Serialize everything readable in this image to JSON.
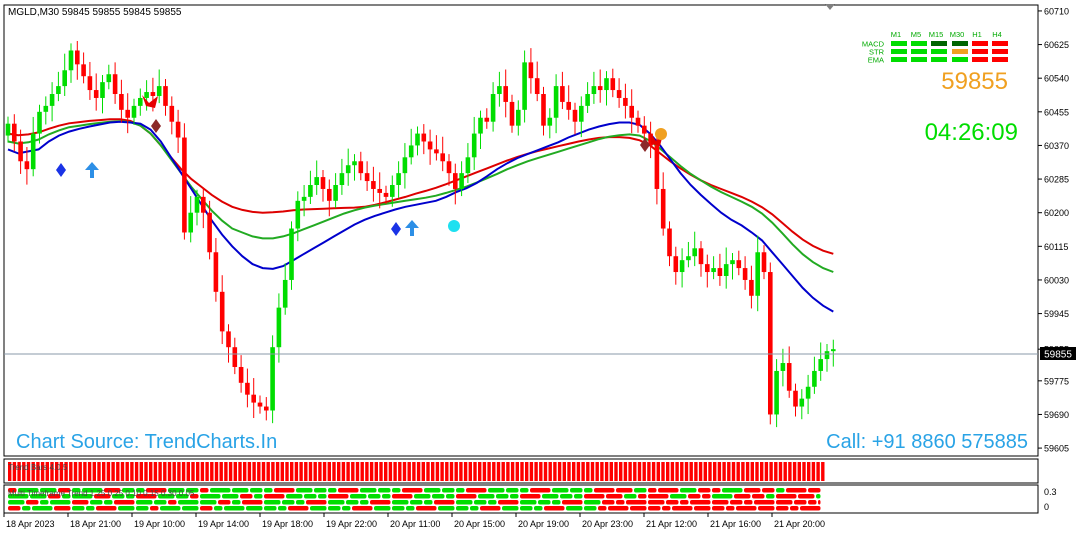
{
  "header": {
    "symbol_line": "MGLD,M30  59845 59855 59845 59855"
  },
  "watermarks": {
    "source": "Chart Source: TrendCharts.In",
    "contact": "Call: +91 8860 575885"
  },
  "dashboard": {
    "timeframes": [
      "M1",
      "M5",
      "M15",
      "M30",
      "H1",
      "H4"
    ],
    "rows": [
      {
        "label": "MACD",
        "states": [
          "up",
          "up",
          "strong-up",
          "strong-up",
          "down",
          "down"
        ]
      },
      {
        "label": "STR",
        "states": [
          "up",
          "up",
          "up",
          "neutral",
          "down",
          "down"
        ]
      },
      {
        "label": "EMA",
        "states": [
          "up",
          "up",
          "up",
          "up",
          "down",
          "down"
        ]
      }
    ],
    "price": "59855",
    "timer": "04:26:09"
  },
  "indicators": {
    "panel1_label": "Trend Bars 4.0.5",
    "panel2_label": "Multi Timeframe Trend 1.25 0.25 0.10 0.15 0.30 0.05",
    "panel2_scale": [
      "0.3",
      "0"
    ]
  },
  "colors": {
    "bull": "#00dd00",
    "bear": "#ff0000",
    "ema_fast": "#0000cc",
    "ema_mid": "#22aa22",
    "ema_slow": "#dd0000",
    "watermark": "#29a3e6",
    "price_orange": "#f0a020",
    "timer_green": "#00dd00",
    "current_price_line": "#8a9aa8"
  },
  "chart_data": {
    "type": "candlestick",
    "title": "MGLD,M30",
    "y_axis": {
      "ticks": [
        "60710",
        "60625",
        "60540",
        "60455",
        "60370",
        "60285",
        "60200",
        "60115",
        "60030",
        "59945",
        "59855",
        "59775",
        "59690",
        "59605"
      ],
      "current_price_label": "59855",
      "ylim": [
        59585,
        60725
      ]
    },
    "x_axis": {
      "ticks": [
        "18 Apr 2023",
        "18 Apr 21:00",
        "19 Apr 10:00",
        "19 Apr 14:00",
        "19 Apr 18:00",
        "19 Apr 22:00",
        "20 Apr 11:00",
        "20 Apr 15:00",
        "20 Apr 19:00",
        "20 Apr 23:00",
        "21 Apr 12:00",
        "21 Apr 16:00",
        "21 Apr 20:00"
      ]
    },
    "closes": [
      60425,
      60380,
      60330,
      60310,
      60400,
      60455,
      60470,
      60500,
      60520,
      60560,
      60610,
      60575,
      60545,
      60510,
      60490,
      60530,
      60550,
      60500,
      60460,
      60440,
      60470,
      60490,
      60505,
      60495,
      60520,
      60470,
      60430,
      60390,
      60150,
      60200,
      60240,
      60200,
      60100,
      60000,
      59900,
      59860,
      59810,
      59770,
      59740,
      59720,
      59710,
      59700,
      59860,
      59960,
      60030,
      60160,
      60230,
      60240,
      60270,
      60290,
      60260,
      60230,
      60270,
      60300,
      60320,
      60330,
      60300,
      60280,
      60260,
      60250,
      60240,
      60270,
      60300,
      60340,
      60370,
      60400,
      60380,
      60360,
      60350,
      60330,
      60300,
      60260,
      60300,
      60340,
      60400,
      60440,
      60430,
      60500,
      60520,
      60480,
      60420,
      60460,
      60580,
      60540,
      60500,
      60420,
      60440,
      60520,
      60480,
      60460,
      60430,
      60470,
      60500,
      60520,
      60510,
      60540,
      60510,
      60490,
      60470,
      60440,
      60420,
      60400,
      60370,
      60260,
      60160,
      60090,
      60050,
      60080,
      60090,
      60110,
      60070,
      60050,
      60060,
      60040,
      60070,
      60080,
      60060,
      60030,
      59990,
      60100,
      60050,
      59690,
      59800,
      59820,
      59750,
      59710,
      59730,
      59760,
      59800,
      59830,
      59850,
      59855
    ],
    "ema_fast": [
      60360,
      60350,
      60355,
      60360,
      60380,
      60395,
      60405,
      60412,
      60418,
      60423,
      60428,
      60430,
      60428,
      60425,
      60410,
      60380,
      60340,
      60300,
      60260,
      60220,
      60180,
      60145,
      60115,
      60090,
      60070,
      60060,
      60058,
      60065,
      60080,
      60095,
      60110,
      60125,
      60140,
      60155,
      60170,
      60182,
      60192,
      60200,
      60208,
      60215,
      60220,
      60225,
      60230,
      60240,
      60252,
      60262,
      60275,
      60292,
      60310,
      60325,
      60338,
      60348,
      60358,
      60368,
      60378,
      60390,
      60400,
      60410,
      60418,
      60424,
      60428,
      60428,
      60422,
      60400,
      60370,
      60335,
      60300,
      60270,
      60245,
      60222,
      60200,
      60182,
      60168,
      60150,
      60130,
      60100,
      60070,
      60040,
      60010,
      59985,
      59965,
      59950
    ],
    "ema_mid": [
      60380,
      60375,
      60378,
      60385,
      60398,
      60408,
      60416,
      60420,
      60424,
      60427,
      60430,
      60431,
      60429,
      60420,
      60400,
      60370,
      60335,
      60300,
      60265,
      60235,
      60205,
      60180,
      60160,
      60150,
      60140,
      60135,
      60135,
      60140,
      60148,
      60158,
      60168,
      60178,
      60188,
      60198,
      60206,
      60213,
      60218,
      60222,
      60226,
      60230,
      60234,
      60238,
      60243,
      60250,
      60258,
      60266,
      60276,
      60287,
      60298,
      60310,
      60320,
      60330,
      60338,
      60346,
      60354,
      60362,
      60370,
      60378,
      60386,
      60392,
      60396,
      60398,
      60395,
      60382,
      60362,
      60340,
      60318,
      60298,
      60282,
      60266,
      60252,
      60240,
      60228,
      60215,
      60198,
      60175,
      60148,
      60120,
      60095,
      60075,
      60060,
      60050
    ],
    "ema_slow": [
      60400,
      60396,
      60398,
      60403,
      60412,
      60420,
      60426,
      60429,
      60432,
      60434,
      60436,
      60436,
      60432,
      60420,
      60400,
      60370,
      60340,
      60310,
      60285,
      60265,
      60245,
      60228,
      60215,
      60207,
      60202,
      60200,
      60201,
      60203,
      60206,
      60208,
      60209,
      60210,
      60211,
      60212,
      60213,
      60215,
      60220,
      60226,
      60233,
      60240,
      60248,
      60255,
      60263,
      60272,
      60282,
      60292,
      60302,
      60312,
      60322,
      60332,
      60341,
      60349,
      60356,
      60362,
      60368,
      60374,
      60380,
      60385,
      60389,
      60391,
      60391,
      60389,
      60383,
      60370,
      60350,
      60330,
      60312,
      60296,
      60282,
      60270,
      60260,
      60250,
      60240,
      60228,
      60214,
      60196,
      60174,
      60152,
      60132,
      60116,
      60104,
      60096
    ]
  }
}
